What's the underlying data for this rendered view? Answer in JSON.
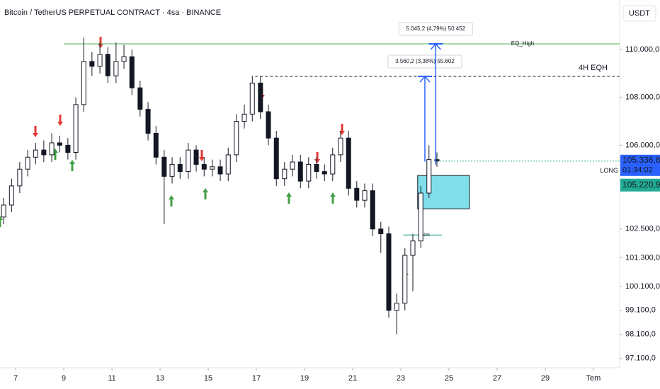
{
  "chart_data": {
    "type": "candlestick",
    "title": "Bitcoin / TetherUS PERPETUAL CONTRACT · 4sa · BINANCE",
    "currency_button": "USDT",
    "x": [
      6.5,
      6.83,
      7.17,
      7.5,
      7.83,
      8.17,
      8.5,
      8.83,
      9.17,
      9.5,
      9.83,
      10.17,
      10.5,
      10.83,
      11.17,
      11.5,
      11.83,
      12.17,
      12.5,
      12.83,
      13.17,
      13.5,
      13.83,
      14.17,
      14.5,
      14.83,
      15.17,
      15.5,
      15.83,
      16.17,
      16.5,
      16.83,
      17.17,
      17.5,
      17.83,
      18.17,
      18.5,
      18.83,
      19.17,
      19.5,
      19.83,
      20.17,
      20.5,
      20.83,
      21.17,
      21.5,
      21.83,
      22.17,
      22.5,
      22.83,
      23.17,
      23.5,
      23.83,
      24.17,
      24.5
    ],
    "open": [
      103000,
      103500,
      104300,
      105000,
      105500,
      105800,
      105600,
      106100,
      106000,
      105700,
      107700,
      109500,
      109300,
      109800,
      108900,
      109500,
      109700,
      108400,
      107500,
      106500,
      105500,
      104700,
      105200,
      104900,
      105800,
      105200,
      105000,
      105100,
      104800,
      105600,
      107000,
      107300,
      108600,
      107400,
      106300,
      104600,
      105000,
      105300,
      104500,
      105200,
      104900,
      104800,
      105600,
      106300,
      104200,
      103700,
      104100,
      102500,
      102300,
      99100,
      99400,
      101400,
      102000,
      104000,
      105400
    ],
    "high": [
      103800,
      104600,
      105300,
      105800,
      106100,
      106200,
      106500,
      106400,
      106300,
      108000,
      110500,
      109900,
      110300,
      110100,
      110300,
      110200,
      110000,
      108700,
      107800,
      106800,
      105800,
      105500,
      105500,
      106100,
      106000,
      105500,
      105400,
      105400,
      105900,
      107300,
      107700,
      108900,
      108900,
      107700,
      106600,
      105300,
      105600,
      105600,
      105500,
      105500,
      105200,
      105900,
      106600,
      106600,
      104500,
      104400,
      104400,
      102800,
      102600,
      99800,
      101700,
      102300,
      104300,
      106000,
      105700
    ],
    "low": [
      102700,
      103200,
      104000,
      104700,
      105200,
      105300,
      105300,
      105700,
      105400,
      105400,
      107400,
      108900,
      109000,
      108600,
      108600,
      109200,
      108100,
      107200,
      106200,
      105200,
      102700,
      104400,
      104600,
      104600,
      104900,
      104700,
      104700,
      104500,
      104500,
      105300,
      106700,
      107000,
      107100,
      106000,
      104300,
      104300,
      104700,
      104200,
      104200,
      104600,
      104500,
      104500,
      105300,
      103900,
      103400,
      103400,
      102200,
      101500,
      98800,
      98100,
      99100,
      99900,
      101700,
      103800,
      105100
    ],
    "close": [
      103500,
      104300,
      105000,
      105500,
      105800,
      105600,
      106100,
      106000,
      105700,
      107700,
      109500,
      109300,
      109800,
      108900,
      109500,
      109700,
      108400,
      107500,
      106500,
      105500,
      104700,
      105200,
      104900,
      105800,
      105200,
      105000,
      105100,
      104800,
      105600,
      107000,
      107300,
      108600,
      107400,
      106300,
      104600,
      105000,
      105300,
      104500,
      105200,
      104900,
      104800,
      105600,
      106300,
      104200,
      103700,
      104100,
      102500,
      102300,
      99100,
      99400,
      101400,
      102000,
      104000,
      105400,
      105337
    ],
    "up_color": "#ffffff",
    "down_color": "#131722",
    "xlim": [
      6.35,
      32.09
    ],
    "xticks": [
      7,
      9,
      11,
      13,
      15,
      17,
      19,
      21,
      23,
      25,
      27,
      29,
      {
        "value": 31,
        "label": "Tem"
      }
    ],
    "ylim": [
      96700,
      112070
    ],
    "yticks": [
      {
        "value": 110000,
        "label": "110.000,0"
      },
      {
        "value": 108000,
        "label": "108.000,0"
      },
      {
        "value": 106000,
        "label": "106.000,0"
      },
      {
        "value": 102500,
        "label": "102.500,0"
      },
      {
        "value": 101300,
        "label": "101.300,0"
      },
      {
        "value": 100100,
        "label": "100.100,0"
      },
      {
        "value": 99100,
        "label": "99.100,0"
      },
      {
        "value": 98100,
        "label": "98.100,0"
      },
      {
        "value": 97100,
        "label": "97.100,0"
      }
    ],
    "grid": false,
    "levels": [
      {
        "label": "EQ_High",
        "value": 110237,
        "x_start": 9.0,
        "color": "#4caf50",
        "label_color": "#2962ff",
        "style": "solid"
      },
      {
        "label": "4H EQH",
        "value": 108876,
        "x_start": 16.95,
        "color": "#131722",
        "label_color": "#131722",
        "style": "dashed"
      }
    ],
    "zone": {
      "low": 103343,
      "high": 104734,
      "x": [
        23.7,
        25.85
      ],
      "color": "#80deea"
    },
    "measures": [
      {
        "label": "3.560,2 (3,38%) 55.602",
        "from": 105316,
        "to": 108876,
        "x": 24.0
      },
      {
        "label": "5.045,2 (4,79%) 50.452",
        "from": 105192,
        "to": 110237,
        "x": 24.45
      }
    ],
    "bos": {
      "label": "BOS",
      "value": 102250,
      "x": [
        23.1,
        24.7
      ]
    },
    "last_price": {
      "value": 105336.8,
      "label": "105.336,8",
      "countdown": "01:34:02",
      "color": "#2962ff"
    },
    "entry": {
      "value": 105220.9,
      "label": "105.220,9",
      "text": "LONG",
      "color": "#22ab94"
    }
  }
}
